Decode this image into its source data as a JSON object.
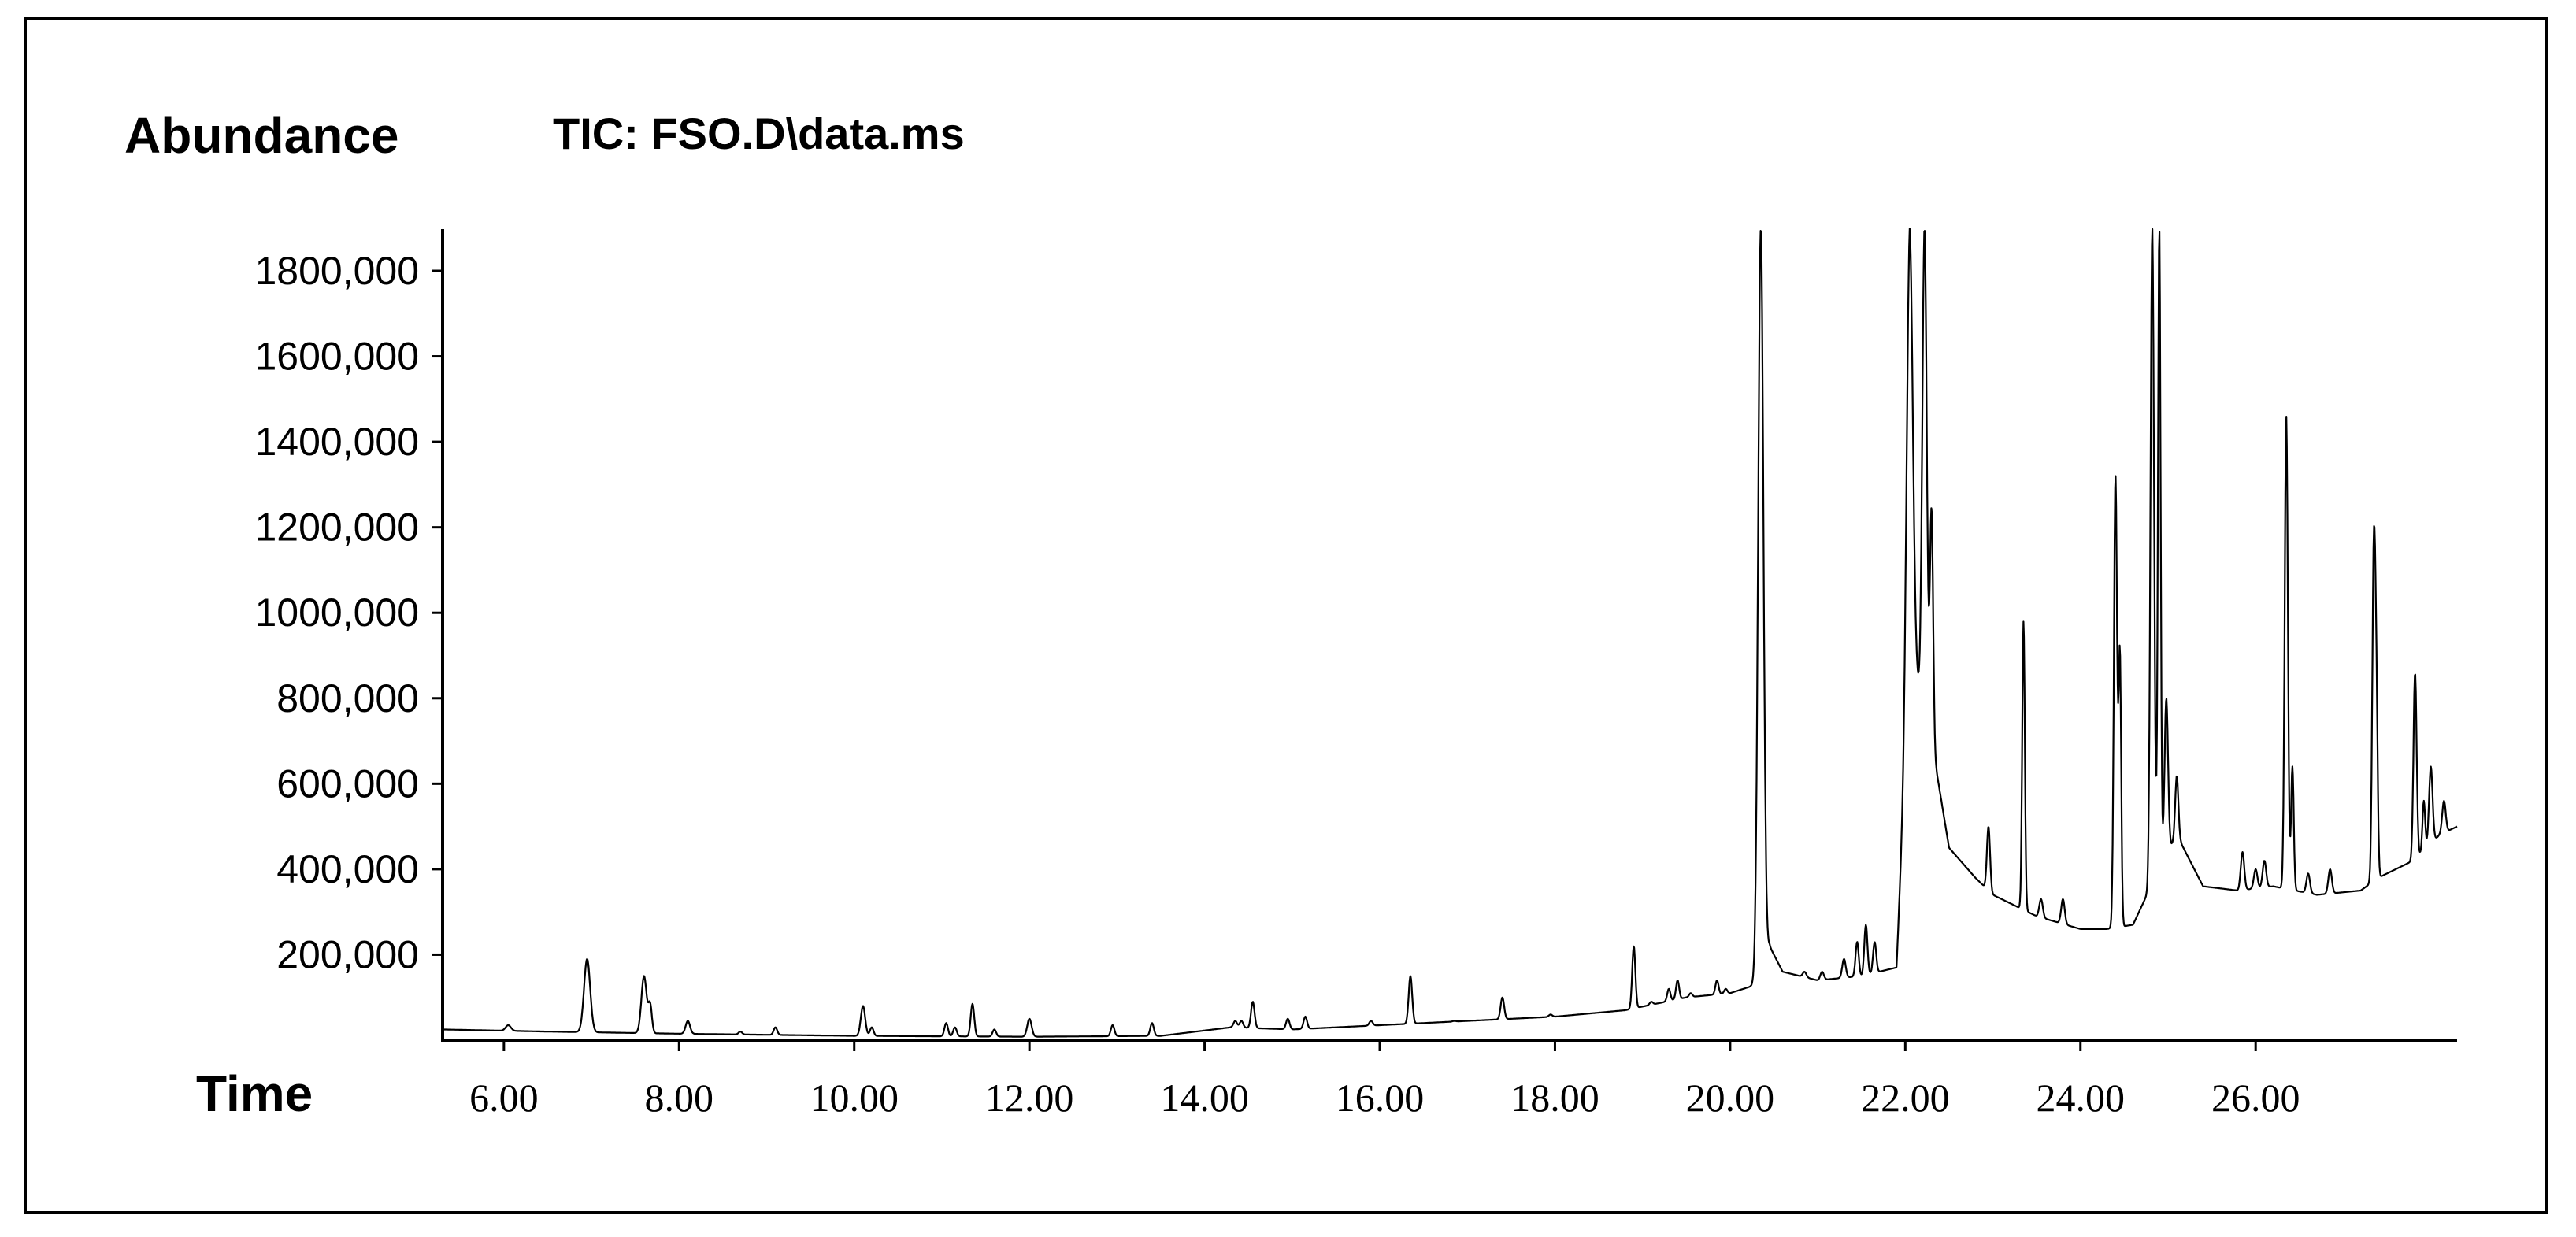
{
  "chart_data": {
    "type": "line",
    "title": "TIC: FSO.D\\data.ms",
    "ylabel": "Abundance",
    "xlabel": "Time",
    "xlim": [
      5.3,
      28.3
    ],
    "ylim": [
      0,
      1900000
    ],
    "y_ticks": [
      200000,
      400000,
      600000,
      800000,
      1000000,
      1200000,
      1400000,
      1600000,
      1800000
    ],
    "y_tick_labels": [
      "200,000",
      "400,000",
      "600,000",
      "800,000",
      "1000,000",
      "1200,000",
      "1400,000",
      "1600,000",
      "1800,000"
    ],
    "x_ticks": [
      6,
      8,
      10,
      12,
      14,
      16,
      18,
      20,
      22,
      24,
      26
    ],
    "x_tick_labels": [
      "6.00",
      "8.00",
      "10.00",
      "12.00",
      "14.00",
      "16.00",
      "18.00",
      "20.00",
      "22.00",
      "24.00",
      "26.00"
    ],
    "grid": false,
    "legend": "none",
    "line_color": "#000000",
    "series": [
      {
        "baseline": [
          [
            5.3,
            25000
          ],
          [
            6.5,
            20000
          ],
          [
            8,
            15000
          ],
          [
            10,
            10000
          ],
          [
            12,
            8000
          ],
          [
            13.5,
            10000
          ],
          [
            14.3,
            30000
          ],
          [
            15,
            25000
          ],
          [
            16,
            35000
          ],
          [
            17,
            45000
          ],
          [
            18,
            55000
          ],
          [
            18.8,
            70000
          ],
          [
            19.5,
            100000
          ],
          [
            20,
            110000
          ],
          [
            20.3,
            130000
          ],
          [
            20.45,
            220000
          ],
          [
            20.6,
            160000
          ],
          [
            21,
            140000
          ],
          [
            21.5,
            150000
          ],
          [
            21.9,
            170000
          ],
          [
            22.05,
            900000
          ],
          [
            22.3,
            700000
          ],
          [
            22.5,
            450000
          ],
          [
            22.8,
            380000
          ],
          [
            23,
            340000
          ],
          [
            23.5,
            290000
          ],
          [
            24,
            260000
          ],
          [
            24.3,
            260000
          ],
          [
            24.6,
            270000
          ],
          [
            24.85,
            380000
          ],
          [
            25.1,
            480000
          ],
          [
            25.4,
            360000
          ],
          [
            25.8,
            350000
          ],
          [
            26.2,
            360000
          ],
          [
            26.7,
            340000
          ],
          [
            27.2,
            350000
          ],
          [
            27.4,
            380000
          ],
          [
            27.8,
            420000
          ],
          [
            28.1,
            480000
          ],
          [
            28.3,
            500000
          ]
        ],
        "peaks": [
          [
            6.05,
            35000,
            0.03
          ],
          [
            6.95,
            190000,
            0.035
          ],
          [
            7.6,
            150000,
            0.03
          ],
          [
            7.67,
            80000,
            0.02
          ],
          [
            8.1,
            45000,
            0.025
          ],
          [
            8.7,
            20000,
            0.02
          ],
          [
            9.1,
            30000,
            0.02
          ],
          [
            10.1,
            80000,
            0.025
          ],
          [
            10.2,
            30000,
            0.02
          ],
          [
            11.05,
            40000,
            0.02
          ],
          [
            11.15,
            30000,
            0.02
          ],
          [
            11.35,
            85000,
            0.02
          ],
          [
            11.6,
            25000,
            0.02
          ],
          [
            12,
            50000,
            0.025
          ],
          [
            12.95,
            35000,
            0.02
          ],
          [
            13.4,
            40000,
            0.02
          ],
          [
            14.35,
            45000,
            0.02
          ],
          [
            14.42,
            45000,
            0.02
          ],
          [
            14.55,
            90000,
            0.02
          ],
          [
            14.95,
            50000,
            0.02
          ],
          [
            15.15,
            55000,
            0.02
          ],
          [
            15.9,
            45000,
            0.02
          ],
          [
            16.35,
            150000,
            0.02
          ],
          [
            16.85,
            45000,
            0.02
          ],
          [
            17.05,
            40000,
            0.02
          ],
          [
            17.4,
            100000,
            0.02
          ],
          [
            17.95,
            60000,
            0.02
          ],
          [
            18.9,
            220000,
            0.018
          ],
          [
            19.1,
            90000,
            0.018
          ],
          [
            19.3,
            120000,
            0.018
          ],
          [
            19.4,
            140000,
            0.018
          ],
          [
            19.55,
            110000,
            0.018
          ],
          [
            19.85,
            140000,
            0.018
          ],
          [
            19.95,
            120000,
            0.018
          ],
          [
            20.35,
            1900000,
            0.03
          ],
          [
            20.85,
            160000,
            0.02
          ],
          [
            21.05,
            160000,
            0.02
          ],
          [
            21.3,
            190000,
            0.02
          ],
          [
            21.45,
            230000,
            0.018
          ],
          [
            21.55,
            270000,
            0.018
          ],
          [
            21.65,
            230000,
            0.018
          ],
          [
            22.05,
            1900000,
            0.035
          ],
          [
            22.22,
            1900000,
            0.025
          ],
          [
            22.3,
            1240000,
            0.018
          ],
          [
            22.95,
            500000,
            0.018
          ],
          [
            23.35,
            980000,
            0.015
          ],
          [
            23.55,
            330000,
            0.02
          ],
          [
            23.8,
            330000,
            0.02
          ],
          [
            24.4,
            1320000,
            0.018
          ],
          [
            24.45,
            900000,
            0.015
          ],
          [
            24.82,
            1900000,
            0.02
          ],
          [
            24.9,
            1900000,
            0.015
          ],
          [
            24.98,
            800000,
            0.02
          ],
          [
            25.1,
            620000,
            0.018
          ],
          [
            25.6,
            350000,
            0.02
          ],
          [
            25.85,
            440000,
            0.02
          ],
          [
            26,
            400000,
            0.02
          ],
          [
            26.1,
            420000,
            0.02
          ],
          [
            26.35,
            1460000,
            0.018
          ],
          [
            26.42,
            640000,
            0.015
          ],
          [
            26.6,
            390000,
            0.02
          ],
          [
            26.85,
            400000,
            0.02
          ],
          [
            27.35,
            1150000,
            0.018
          ],
          [
            27.38,
            720000,
            0.015
          ],
          [
            27.82,
            860000,
            0.018
          ],
          [
            27.92,
            560000,
            0.015
          ],
          [
            28.0,
            640000,
            0.02
          ],
          [
            28.15,
            560000,
            0.02
          ]
        ]
      }
    ]
  }
}
